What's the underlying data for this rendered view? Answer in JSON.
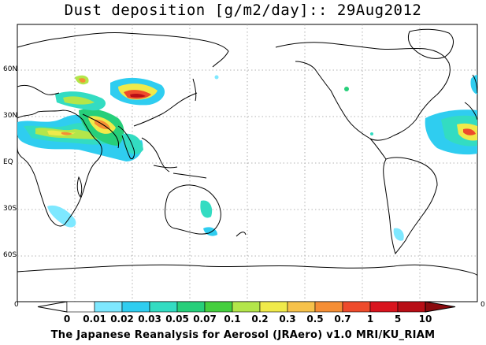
{
  "title": "Dust deposition [g/m2/day]:: 29Aug2012",
  "lat_labels": [
    "60N",
    "30N",
    "EQ",
    "30S",
    "60S"
  ],
  "colorbar": {
    "ticks": [
      "0",
      "0.01",
      "0.02",
      "0.03",
      "0.05",
      "0.07",
      "0.1",
      "0.2",
      "0.3",
      "0.5",
      "0.7",
      "1",
      "5",
      "10"
    ],
    "colors": [
      "#ffffff",
      "#7ee8ff",
      "#2fcdf0",
      "#33dcc2",
      "#27cf7a",
      "#45cf3e",
      "#b3e64a",
      "#f0ea4a",
      "#f7c24a",
      "#f58e35",
      "#ee4b2c",
      "#d9141e",
      "#b80e16",
      "#8a0a0e"
    ],
    "edge_label": "0"
  },
  "footer": "The Japanese Reanalysis for Aerosol (JRAero) v1.0 MRI/KU_RIAM"
}
